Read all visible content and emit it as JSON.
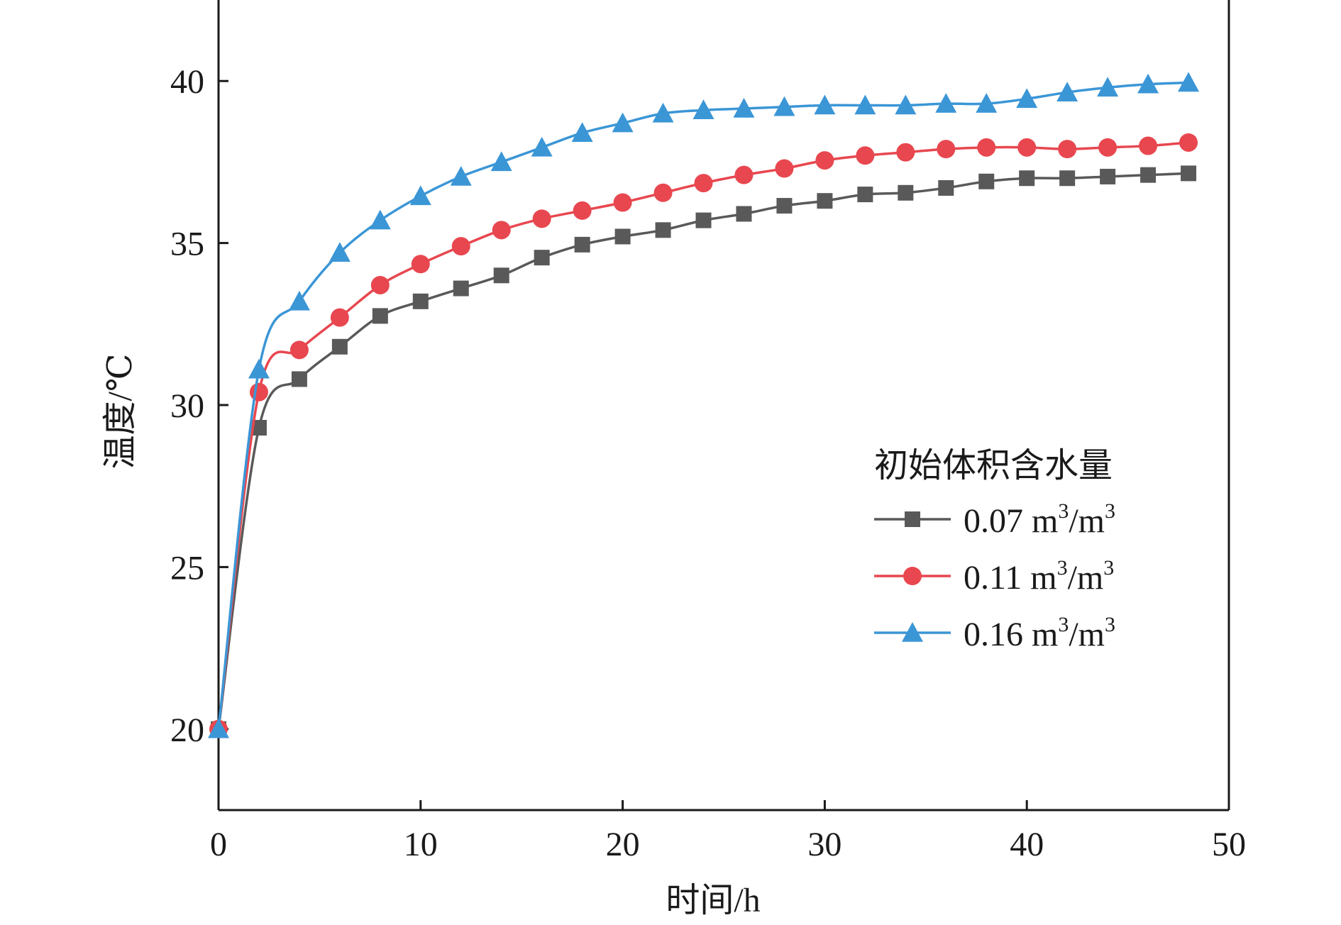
{
  "chart_data": {
    "type": "line",
    "title": "",
    "xlabel": "时间/h",
    "ylabel": "温度/℃",
    "xlim": [
      0,
      50
    ],
    "ylim": [
      17.5,
      42.5
    ],
    "xticks": [
      0,
      10,
      20,
      30,
      40,
      50
    ],
    "yticks": [
      20,
      25,
      30,
      35,
      40
    ],
    "grid": false,
    "legend": {
      "title": "初始体积含水量",
      "position": "center-right"
    },
    "x": [
      0,
      2,
      4,
      6,
      8,
      10,
      12,
      14,
      16,
      18,
      20,
      22,
      24,
      26,
      28,
      30,
      32,
      34,
      36,
      38,
      40,
      42,
      44,
      46,
      48
    ],
    "series": [
      {
        "name": "0.07 m³/m³",
        "label_main": "0.07 m",
        "label_sup1": "3",
        "label_mid": "/m",
        "label_sup2": "3",
        "color": "#595959",
        "marker": "square",
        "values": [
          20.0,
          29.3,
          30.8,
          31.8,
          32.75,
          33.2,
          33.6,
          34.0,
          34.55,
          34.95,
          35.2,
          35.4,
          35.7,
          35.9,
          36.15,
          36.3,
          36.5,
          36.55,
          36.7,
          36.9,
          37.0,
          37.0,
          37.05,
          37.1,
          37.15
        ]
      },
      {
        "name": "0.11 m³/m³",
        "label_main": "0.11 m",
        "label_sup1": "3",
        "label_mid": "/m",
        "label_sup2": "3",
        "color": "#e8474f",
        "marker": "circle",
        "values": [
          20.0,
          30.4,
          31.7,
          32.7,
          33.7,
          34.35,
          34.9,
          35.4,
          35.75,
          36.0,
          36.25,
          36.55,
          36.85,
          37.1,
          37.3,
          37.55,
          37.7,
          37.8,
          37.9,
          37.95,
          37.95,
          37.9,
          37.95,
          38.0,
          38.1
        ]
      },
      {
        "name": "0.16 m³/m³",
        "label_main": "0.16 m",
        "label_sup1": "3",
        "label_mid": "/m",
        "label_sup2": "3",
        "color": "#3b96d6",
        "marker": "triangle",
        "values": [
          20.0,
          31.1,
          33.2,
          34.7,
          35.7,
          36.45,
          37.05,
          37.5,
          37.95,
          38.4,
          38.7,
          39.0,
          39.1,
          39.15,
          39.2,
          39.25,
          39.25,
          39.25,
          39.3,
          39.3,
          39.45,
          39.65,
          39.8,
          39.9,
          39.95
        ]
      }
    ]
  }
}
